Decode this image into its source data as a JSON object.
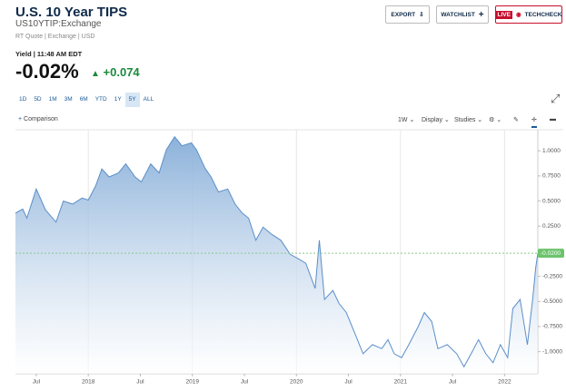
{
  "header": {
    "title": "U.S. 10 Year TIPS",
    "symbol": "US10YTIP:Exchange",
    "meta": "RT Quote | Exchange | USD",
    "buttons": [
      "EXPORT",
      "WATCHLIST"
    ],
    "live": "LIVE",
    "techcheck": "TECHCHECK"
  },
  "quote": {
    "yield_label": "Yield | 11:48 AM EDT",
    "last": "-0.02%",
    "change": "+0.074"
  },
  "ranges": [
    "1D",
    "5D",
    "1M",
    "3M",
    "6M",
    "YTD",
    "1Y",
    "5Y",
    "ALL"
  ],
  "selected_range": 7,
  "toolbar": {
    "comparison": "Comparison",
    "interval": "1W",
    "display": "Display",
    "studies": "Studies"
  },
  "chart_data": {
    "type": "area",
    "color": "#5b8fc9",
    "x": [
      2017.3,
      2017.37,
      2017.41,
      2017.5,
      2017.59,
      2017.69,
      2017.76,
      2017.85,
      2017.94,
      2018.0,
      2018.07,
      2018.13,
      2018.2,
      2018.29,
      2018.36,
      2018.45,
      2018.51,
      2018.6,
      2018.68,
      2018.75,
      2018.83,
      2018.9,
      2018.99,
      2019.04,
      2019.12,
      2019.18,
      2019.25,
      2019.34,
      2019.41,
      2019.48,
      2019.54,
      2019.61,
      2019.68,
      2019.76,
      2019.85,
      2019.94,
      2020.01,
      2020.09,
      2020.18,
      2020.22,
      2020.27,
      2020.35,
      2020.41,
      2020.48,
      2020.57,
      2020.64,
      2020.73,
      2020.82,
      2020.88,
      2020.94,
      2021.01,
      2021.08,
      2021.17,
      2021.23,
      2021.3,
      2021.36,
      2021.45,
      2021.54,
      2021.61,
      2021.69,
      2021.75,
      2021.82,
      2021.89,
      2021.96,
      2022.03,
      2022.08,
      2022.15,
      2022.22,
      2022.27,
      2022.3,
      2022.32
    ],
    "values": [
      0.38,
      0.42,
      0.33,
      0.62,
      0.41,
      0.29,
      0.5,
      0.47,
      0.53,
      0.51,
      0.65,
      0.82,
      0.74,
      0.78,
      0.87,
      0.74,
      0.69,
      0.87,
      0.78,
      1.01,
      1.14,
      1.05,
      1.08,
      1.01,
      0.83,
      0.74,
      0.59,
      0.62,
      0.47,
      0.38,
      0.33,
      0.11,
      0.24,
      0.17,
      0.11,
      -0.03,
      -0.07,
      -0.12,
      -0.37,
      0.11,
      -0.48,
      -0.39,
      -0.52,
      -0.61,
      -0.84,
      -1.02,
      -0.93,
      -0.97,
      -0.88,
      -1.02,
      -1.06,
      -0.93,
      -0.75,
      -0.61,
      -0.7,
      -0.97,
      -0.93,
      -1.02,
      -1.15,
      -1.0,
      -0.88,
      -1.02,
      -1.11,
      -0.93,
      -1.06,
      -0.57,
      -0.48,
      -0.93,
      -0.48,
      -0.16,
      -0.02
    ],
    "current": {
      "value": -0.02,
      "label": "-0.0200"
    },
    "xlim": [
      2017.3,
      2022.32
    ],
    "ylim": [
      -1.22,
      1.21
    ],
    "xticks": [
      {
        "value": 2017.5,
        "label": "Jul"
      },
      2018,
      {
        "value": 2018.5,
        "label": "Jul"
      },
      2019,
      {
        "value": 2019.5,
        "label": "Jul"
      },
      2020,
      {
        "value": 2020.5,
        "label": "Jul"
      },
      2021,
      {
        "value": 2021.5,
        "label": "Jul"
      },
      2022
    ],
    "yticks": [
      {
        "value": 1,
        "label": "1.0000"
      },
      {
        "value": 0.75,
        "label": "0.7500"
      },
      {
        "value": 0.5,
        "label": "0.5000"
      },
      {
        "value": 0.25,
        "label": "0.2500"
      },
      {
        "value": -0.25,
        "label": "-0.2500"
      },
      {
        "value": -0.5,
        "label": "-0.5000"
      },
      {
        "value": -0.75,
        "label": "-0.7500"
      },
      {
        "value": -1,
        "label": "-1.0000"
      }
    ],
    "grid": true
  }
}
